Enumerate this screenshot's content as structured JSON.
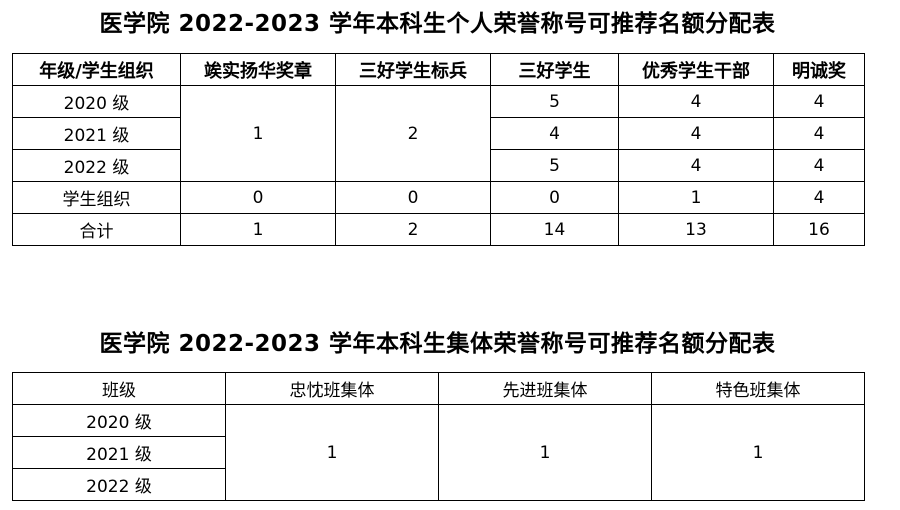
{
  "table1": {
    "title": "医学院 2022-2023 学年本科生个人荣誉称号可推荐名额分配表",
    "headers": [
      "年级/学生组织",
      "竢实扬华奖章",
      "三好学生标兵",
      "三好学生",
      "优秀学生干部",
      "明诚奖"
    ],
    "rows": [
      {
        "label": "2020 级",
        "c1": "1",
        "c2": "2",
        "c3": "5",
        "c4": "4",
        "c5": "4"
      },
      {
        "label": "2021 级",
        "c3": "4",
        "c4": "4",
        "c5": "4"
      },
      {
        "label": "2022 级",
        "c3": "5",
        "c4": "4",
        "c5": "4"
      },
      {
        "label": "学生组织",
        "c1": "0",
        "c2": "0",
        "c3": "0",
        "c4": "1",
        "c5": "4"
      },
      {
        "label": "合计",
        "c1": "1",
        "c2": "2",
        "c3": "14",
        "c4": "13",
        "c5": "16"
      }
    ]
  },
  "table2": {
    "title": "医学院 2022-2023 学年本科生集体荣誉称号可推荐名额分配表",
    "headers": [
      "班级",
      "忠忱班集体",
      "先进班集体",
      "特色班集体"
    ],
    "rows": [
      "2020 级",
      "2021 级",
      "2022 级"
    ],
    "values": [
      "1",
      "1",
      "1"
    ]
  }
}
